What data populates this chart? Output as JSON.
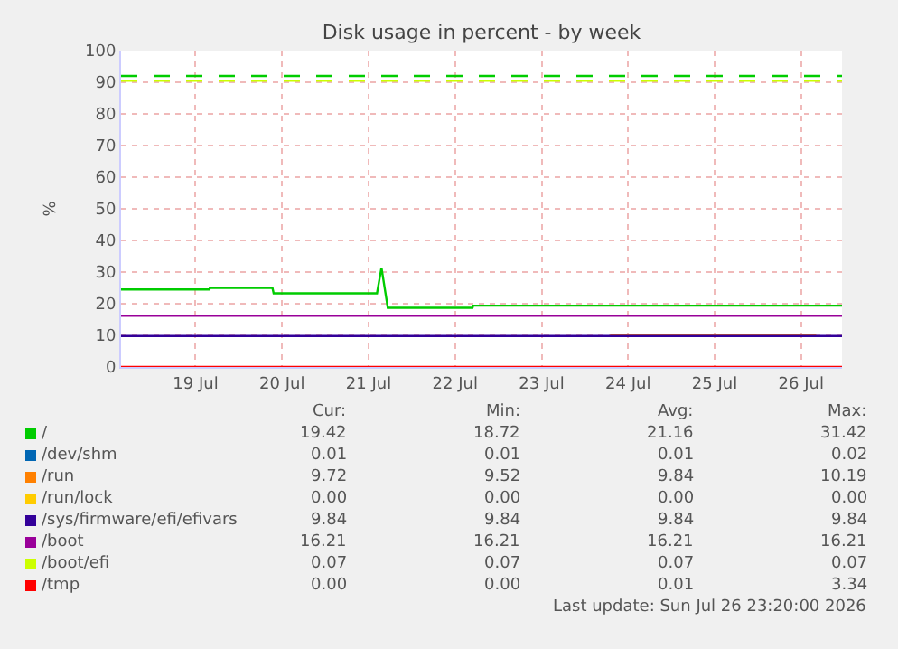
{
  "chart_data": {
    "type": "line",
    "title": "Disk usage in percent - by week",
    "ylabel": "%",
    "xlim": [
      "2026-07-18T15:20",
      "2026-07-26T23:20"
    ],
    "xticks": [
      {
        "value": "2026-07-19T12:00",
        "label": "19 Jul"
      },
      {
        "value": "2026-07-20T12:00",
        "label": "20 Jul"
      },
      {
        "value": "2026-07-21T12:00",
        "label": "21 Jul"
      },
      {
        "value": "2026-07-22T12:00",
        "label": "22 Jul"
      },
      {
        "value": "2026-07-23T12:00",
        "label": "23 Jul"
      },
      {
        "value": "2026-07-24T12:00",
        "label": "24 Jul"
      },
      {
        "value": "2026-07-25T12:00",
        "label": "25 Jul"
      },
      {
        "value": "2026-07-26T12:00",
        "label": "26 Jul"
      }
    ],
    "ylim": [
      0,
      100
    ],
    "yticks": [
      0,
      10,
      20,
      30,
      40,
      50,
      60,
      70,
      80,
      90,
      100
    ],
    "grid": true,
    "legend": "bottom left",
    "marker": "none",
    "line_style": "solid",
    "x": [
      "2026-07-18T15:20",
      "2026-07-19T15:50",
      "2026-07-19T16:00",
      "2026-07-20T09:20",
      "2026-07-20T09:40",
      "2026-07-21T14:20",
      "2026-07-21T15:35",
      "2026-07-21T17:20",
      "2026-07-22T16:50",
      "2026-07-22T17:00",
      "2026-07-26T23:20"
    ],
    "series": [
      {
        "name": "/",
        "color": "#00cc00",
        "values": [
          24.5,
          24.5,
          25.0,
          25.0,
          23.3,
          23.3,
          31.4,
          18.7,
          18.7,
          19.4,
          19.4
        ]
      },
      {
        "name": "/dev/shm",
        "color": "#0066b3",
        "values": [
          null,
          null,
          null,
          null,
          null,
          null,
          null,
          null,
          null,
          null,
          null
        ]
      },
      {
        "name": "/run",
        "color": "#ff8000",
        "x": [
          "2026-07-24T07:00",
          "2026-07-24T07:10",
          "2026-07-26T16:00",
          "2026-07-26T16:10"
        ],
        "values": [
          10.1,
          10.1,
          10.1,
          10.1
        ]
      },
      {
        "name": "/run/lock",
        "color": "#ffcc00",
        "values": [
          null,
          null,
          null,
          null,
          null,
          null,
          null,
          null,
          null,
          null,
          null
        ]
      },
      {
        "name": "/sys/firmware/efi/efivars",
        "color": "#330099",
        "values": [
          9.8,
          9.8,
          9.8,
          9.8,
          9.8,
          9.8,
          9.8,
          9.8,
          9.8,
          9.8,
          9.8
        ]
      },
      {
        "name": "/boot",
        "color": "#990099",
        "values": [
          16.2,
          16.2,
          16.2,
          16.2,
          16.2,
          16.2,
          16.2,
          16.2,
          16.2,
          16.2,
          16.2
        ]
      },
      {
        "name": "/boot/efi",
        "color": "#ccff00",
        "values": [
          null,
          null,
          null,
          null,
          null,
          null,
          null,
          null,
          null,
          null,
          null
        ]
      },
      {
        "name": "/tmp",
        "color": "#ff0000",
        "values": [
          0,
          0,
          0,
          0,
          0,
          0,
          0,
          0,
          0,
          0,
          0
        ]
      }
    ],
    "ref_lines": [
      {
        "axis": "y",
        "value": 92,
        "color": "#00cc00",
        "line_style": "dashed"
      },
      {
        "axis": "y",
        "value": 90.5,
        "color": "#ccff00",
        "line_style": "dashed"
      }
    ],
    "annotations": [
      "Cur:",
      "Min:",
      "Avg:",
      "Max:",
      "19.42",
      "18.72",
      "21.16",
      "31.42",
      "0.01",
      "0.01",
      "0.01",
      "0.02",
      "9.72",
      "9.52",
      "9.84",
      "10.19",
      "0.00",
      "0.00",
      "0.00",
      "0.00",
      "9.84",
      "9.84",
      "9.84",
      "9.84",
      "16.21",
      "16.21",
      "16.21",
      "16.21",
      "0.07",
      "0.07",
      "0.07",
      "0.07",
      "0.00",
      "0.00",
      "0.01",
      "3.34",
      "Last update: Sun Jul 26 23:20:00 2026"
    ]
  }
}
